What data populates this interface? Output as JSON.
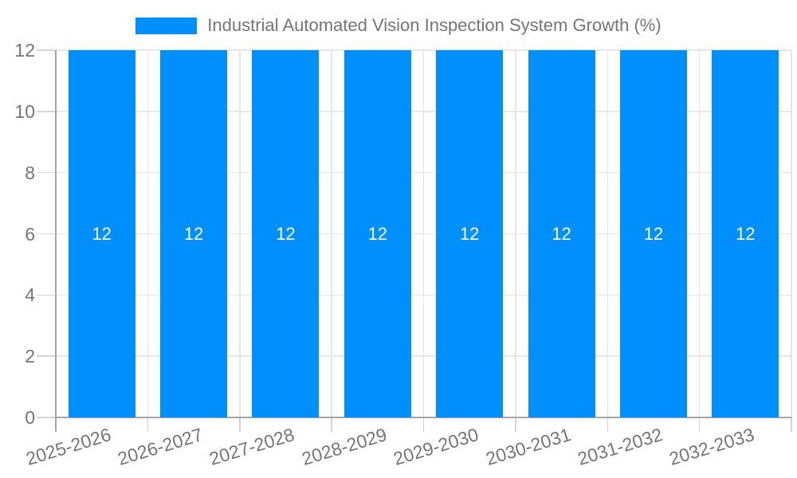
{
  "chart_data": {
    "type": "bar",
    "title": "Industrial Automated Vision Inspection System Growth (%)",
    "categories": [
      "2025-2026",
      "2026-2027",
      "2027-2028",
      "2028-2029",
      "2029-2030",
      "2030-2031",
      "2031-2032",
      "2032-2033"
    ],
    "values": [
      12,
      12,
      12,
      12,
      12,
      12,
      12,
      12
    ],
    "xlabel": "",
    "ylabel": "",
    "ylim": [
      0,
      12
    ],
    "yticks": [
      0,
      2,
      4,
      6,
      8,
      10,
      12
    ],
    "grid": true,
    "legend_position": "top",
    "colors": {
      "bar": "#008FFB",
      "bar_value_label": "#FFFFFF",
      "axis_text": "#757575",
      "gridline": "#E6E6E6",
      "tick": "#D4D4D4",
      "axis_line": "#A6A6A6",
      "background": "#FFFFFF"
    }
  }
}
